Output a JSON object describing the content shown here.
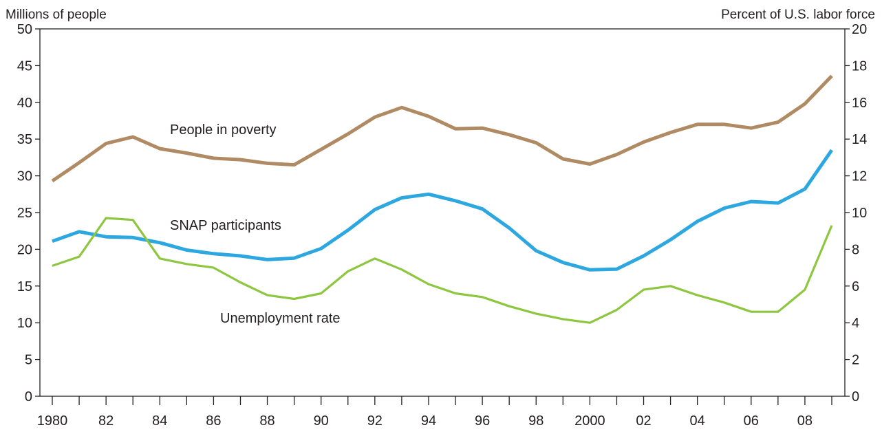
{
  "chart_data": {
    "type": "line",
    "title": "",
    "y_left_label": "Millions of people",
    "y_right_label": "Percent of U.S. labor force",
    "y_left_range": [
      0,
      50
    ],
    "y_right_range": [
      0,
      20
    ],
    "y_left_ticks": [
      "0",
      "5",
      "10",
      "15",
      "20",
      "25",
      "30",
      "35",
      "40",
      "45",
      "50"
    ],
    "y_right_ticks": [
      "0",
      "2",
      "4",
      "6",
      "8",
      "10",
      "12",
      "14",
      "16",
      "18",
      "20"
    ],
    "x": [
      1980,
      1981,
      1982,
      1983,
      1984,
      1985,
      1986,
      1987,
      1988,
      1989,
      1990,
      1991,
      1992,
      1993,
      1994,
      1995,
      1996,
      1997,
      1998,
      1999,
      2000,
      2001,
      2002,
      2003,
      2004,
      2005,
      2006,
      2007,
      2008,
      2009
    ],
    "x_tick_labels": [
      "1980",
      "82",
      "84",
      "86",
      "88",
      "90",
      "92",
      "94",
      "96",
      "98",
      "2000",
      "02",
      "04",
      "06",
      "08"
    ],
    "grid": false,
    "series": [
      {
        "name": "People in poverty",
        "axis": "left",
        "color": "#b08a63",
        "values": [
          29.3,
          31.8,
          34.4,
          35.3,
          33.7,
          33.1,
          32.4,
          32.2,
          31.7,
          31.5,
          33.6,
          35.7,
          38.0,
          39.3,
          38.1,
          36.4,
          36.5,
          35.6,
          34.5,
          32.3,
          31.6,
          32.9,
          34.6,
          35.9,
          37.0,
          37.0,
          36.5,
          37.3,
          39.8,
          43.6
        ]
      },
      {
        "name": "SNAP participants",
        "axis": "left",
        "color": "#2ca7e0",
        "values": [
          21.1,
          22.4,
          21.7,
          21.6,
          20.9,
          19.9,
          19.4,
          19.1,
          18.6,
          18.8,
          20.1,
          22.6,
          25.4,
          27.0,
          27.5,
          26.6,
          25.5,
          22.9,
          19.8,
          18.2,
          17.2,
          17.3,
          19.1,
          21.3,
          23.8,
          25.6,
          26.5,
          26.3,
          28.2,
          33.5
        ]
      },
      {
        "name": "Unemployment rate",
        "axis": "right",
        "color": "#8dc63f",
        "values": [
          7.1,
          7.6,
          9.7,
          9.6,
          7.5,
          7.2,
          7.0,
          6.2,
          5.5,
          5.3,
          5.6,
          6.8,
          7.5,
          6.9,
          6.1,
          5.6,
          5.4,
          4.9,
          4.5,
          4.2,
          4.0,
          4.7,
          5.8,
          6.0,
          5.5,
          5.1,
          4.6,
          4.6,
          5.8,
          9.3
        ]
      }
    ]
  }
}
